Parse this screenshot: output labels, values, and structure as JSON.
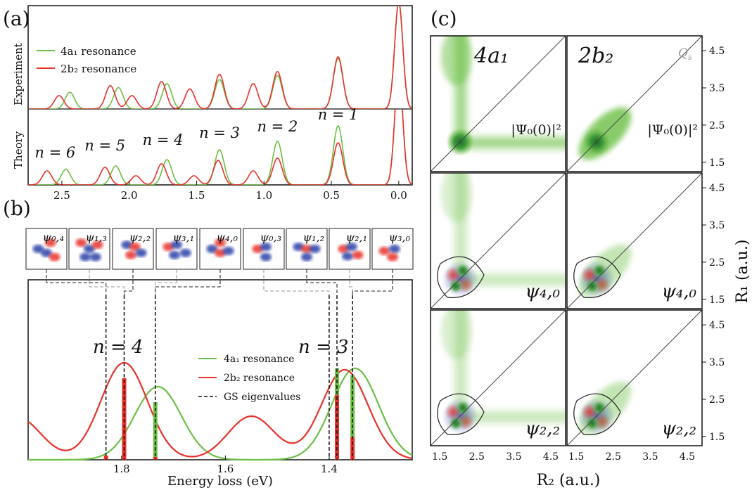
{
  "panel_a": {
    "label": "(a)",
    "ylabel_top": "Experiment",
    "ylabel_bottom": "Theory",
    "legend": [
      "4a₁ resonance",
      "2b₂ resonance"
    ],
    "n_labels": [
      {
        "text": "n = 1",
        "x": 0.45
      },
      {
        "text": "n = 2",
        "x": 0.9
      },
      {
        "text": "n = 3",
        "x": 1.33
      },
      {
        "text": "n = 4",
        "x": 1.75
      },
      {
        "text": "n = 5",
        "x": 2.18
      },
      {
        "text": "n = 6",
        "x": 2.55
      }
    ],
    "xticklabels": [
      "2.5",
      "2.0",
      "1.5",
      "1.0",
      "0.5",
      "0.0"
    ]
  },
  "panel_b": {
    "label": "(b)",
    "xlabel": "Energy loss (eV)",
    "xticklabels": [
      "1.8",
      "1.6",
      "1.4"
    ],
    "legend": [
      "4a₁ resonance",
      "2b₂ resonance",
      "GS eigenvalues"
    ],
    "n_labels": [
      "n = 4",
      "n = 3"
    ],
    "orbitals": [
      "ψ₀,₄",
      "ψ₁,₃",
      "ψ₂,₂",
      "ψ₃,₁",
      "ψ₄,₀",
      "ψ₀,₃",
      "ψ₁,₂",
      "ψ₂,₁",
      "ψ₃,₀"
    ]
  },
  "panel_c": {
    "label": "(c)",
    "col_titles": [
      "4a₁",
      "2b₂"
    ],
    "qs": "Q",
    "qs_sub": "s",
    "psi0": "|Ψ₀(0)|²",
    "row_labels": [
      "ψ₄,₀",
      "ψ₂,₂"
    ],
    "ticks": [
      "1.5",
      "2.5",
      "3.5",
      "4.5"
    ],
    "ylabel": "R₁ (a.u.)",
    "xlabel": "R₂ (a.u.)"
  },
  "colors": {
    "green": "#6cbf45",
    "red": "#e8312b",
    "blue": "#2b3fa8"
  },
  "chart_data": [
    {
      "type": "line",
      "title": "",
      "xlabel": "",
      "ylabel": "Experiment",
      "xlim": [
        2.75,
        -0.1
      ],
      "series": [
        {
          "name": "4a₁ resonance",
          "peaks": [
            [
              0.45,
              0.76
            ],
            [
              0.9,
              0.5
            ],
            [
              1.33,
              0.44
            ],
            [
              1.72,
              0.38
            ],
            [
              2.08,
              0.32
            ],
            [
              2.44,
              0.25
            ]
          ]
        },
        {
          "name": "2b₂ resonance",
          "peaks": [
            [
              0.45,
              0.78
            ],
            [
              0.9,
              0.56
            ],
            [
              1.08,
              0.38
            ],
            [
              1.33,
              0.52
            ],
            [
              1.55,
              0.3
            ],
            [
              1.76,
              0.41
            ],
            [
              1.98,
              0.2
            ],
            [
              2.14,
              0.35
            ],
            [
              2.52,
              0.2
            ]
          ]
        }
      ]
    },
    {
      "type": "line",
      "title": "",
      "xlabel": "",
      "ylabel": "Theory",
      "xlim": [
        2.75,
        -0.1
      ],
      "series": [
        {
          "name": "4a₁ resonance",
          "peaks": [
            [
              0.45,
              0.84
            ],
            [
              0.9,
              0.62
            ],
            [
              1.33,
              0.5
            ],
            [
              1.72,
              0.36
            ],
            [
              2.1,
              0.27
            ],
            [
              2.47,
              0.22
            ]
          ]
        },
        {
          "name": "2b₂ resonance",
          "peaks": [
            [
              0.45,
              0.6
            ],
            [
              0.9,
              0.38
            ],
            [
              1.08,
              0.2
            ],
            [
              1.34,
              0.35
            ],
            [
              1.52,
              0.13
            ],
            [
              1.76,
              0.3
            ],
            [
              1.95,
              0.13
            ],
            [
              2.18,
              0.25
            ],
            [
              2.61,
              0.2
            ]
          ]
        }
      ]
    },
    {
      "type": "line",
      "title": "",
      "xlabel": "Energy loss (eV)",
      "ylabel": "",
      "xlim": [
        1.98,
        1.24
      ],
      "series": [
        {
          "name": "4a₁ resonance",
          "peaks": [
            [
              1.73,
              0.52
            ],
            [
              1.35,
              0.65
            ]
          ]
        },
        {
          "name": "2b₂ resonance",
          "peaks": [
            [
              1.795,
              0.69
            ],
            [
              1.55,
              0.31
            ],
            [
              1.37,
              0.64
            ],
            [
              2.0,
              0.3
            ]
          ]
        },
        {
          "name": "GS eigenvalues",
          "x": [
            1.83,
            1.795,
            1.735,
            1.4,
            1.385,
            1.355
          ]
        }
      ],
      "sticks": [
        {
          "x": 1.83,
          "green": 0.0,
          "red": 0.03
        },
        {
          "x": 1.795,
          "green": 0.0,
          "red": 0.58
        },
        {
          "x": 1.735,
          "green": 0.39,
          "red": 0.02
        },
        {
          "x": 1.385,
          "green": 0.19,
          "red": 0.46
        },
        {
          "x": 1.355,
          "green": 0.44,
          "red": 0.16
        }
      ]
    }
  ]
}
